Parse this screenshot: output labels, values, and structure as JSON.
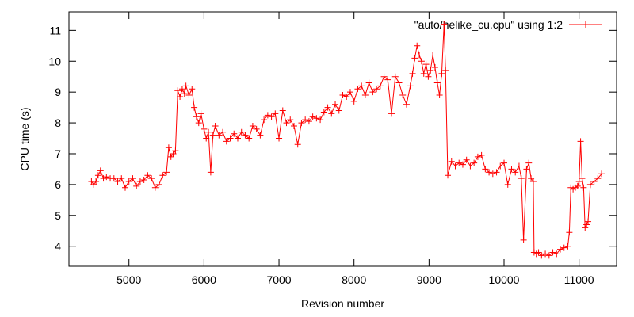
{
  "chart_data": {
    "type": "line",
    "title": "",
    "xlabel": "Revision number",
    "ylabel": "CPU time (s)",
    "xlim": [
      4200,
      11500
    ],
    "ylim": [
      3.35,
      11.6
    ],
    "x_ticks": [
      5000,
      6000,
      7000,
      8000,
      9000,
      10000,
      11000
    ],
    "y_ticks": [
      4,
      5,
      6,
      7,
      8,
      9,
      10,
      11
    ],
    "grid": false,
    "legend_position": "top-right",
    "series": [
      {
        "name": "\"auto/helike_cu.cpu\" using 1:2",
        "color": "#ff0000",
        "marker": "plus",
        "points": [
          [
            4500,
            6.1
          ],
          [
            4530,
            6.0
          ],
          [
            4560,
            6.1
          ],
          [
            4590,
            6.3
          ],
          [
            4620,
            6.45
          ],
          [
            4660,
            6.2
          ],
          [
            4700,
            6.25
          ],
          [
            4750,
            6.2
          ],
          [
            4800,
            6.2
          ],
          [
            4850,
            6.1
          ],
          [
            4900,
            6.2
          ],
          [
            4950,
            5.9
          ],
          [
            5000,
            6.1
          ],
          [
            5050,
            6.2
          ],
          [
            5100,
            5.95
          ],
          [
            5150,
            6.1
          ],
          [
            5200,
            6.15
          ],
          [
            5250,
            6.3
          ],
          [
            5300,
            6.2
          ],
          [
            5350,
            5.9
          ],
          [
            5400,
            6.0
          ],
          [
            5450,
            6.3
          ],
          [
            5500,
            6.4
          ],
          [
            5530,
            7.2
          ],
          [
            5560,
            6.9
          ],
          [
            5590,
            7.0
          ],
          [
            5620,
            7.1
          ],
          [
            5650,
            9.05
          ],
          [
            5680,
            8.85
          ],
          [
            5710,
            9.1
          ],
          [
            5740,
            8.95
          ],
          [
            5760,
            9.2
          ],
          [
            5800,
            8.9
          ],
          [
            5840,
            9.1
          ],
          [
            5870,
            8.5
          ],
          [
            5900,
            8.2
          ],
          [
            5930,
            8.0
          ],
          [
            5960,
            8.3
          ],
          [
            6000,
            7.8
          ],
          [
            6030,
            7.5
          ],
          [
            6060,
            7.7
          ],
          [
            6090,
            6.4
          ],
          [
            6120,
            7.6
          ],
          [
            6150,
            7.9
          ],
          [
            6200,
            7.6
          ],
          [
            6250,
            7.7
          ],
          [
            6300,
            7.4
          ],
          [
            6350,
            7.5
          ],
          [
            6400,
            7.65
          ],
          [
            6450,
            7.5
          ],
          [
            6500,
            7.7
          ],
          [
            6550,
            7.6
          ],
          [
            6600,
            7.5
          ],
          [
            6650,
            7.9
          ],
          [
            6700,
            7.8
          ],
          [
            6750,
            7.6
          ],
          [
            6800,
            8.1
          ],
          [
            6850,
            8.25
          ],
          [
            6900,
            8.2
          ],
          [
            6950,
            8.3
          ],
          [
            7000,
            7.5
          ],
          [
            7050,
            8.4
          ],
          [
            7100,
            8.0
          ],
          [
            7150,
            8.1
          ],
          [
            7200,
            7.9
          ],
          [
            7250,
            7.3
          ],
          [
            7300,
            8.0
          ],
          [
            7350,
            8.1
          ],
          [
            7400,
            8.05
          ],
          [
            7450,
            8.2
          ],
          [
            7500,
            8.15
          ],
          [
            7550,
            8.1
          ],
          [
            7600,
            8.35
          ],
          [
            7650,
            8.5
          ],
          [
            7700,
            8.3
          ],
          [
            7750,
            8.6
          ],
          [
            7800,
            8.4
          ],
          [
            7850,
            8.9
          ],
          [
            7900,
            8.85
          ],
          [
            7950,
            9.0
          ],
          [
            8000,
            8.7
          ],
          [
            8050,
            9.1
          ],
          [
            8100,
            9.2
          ],
          [
            8150,
            8.9
          ],
          [
            8200,
            9.3
          ],
          [
            8250,
            9.0
          ],
          [
            8300,
            9.1
          ],
          [
            8350,
            9.2
          ],
          [
            8400,
            9.5
          ],
          [
            8450,
            9.4
          ],
          [
            8500,
            8.3
          ],
          [
            8550,
            9.5
          ],
          [
            8600,
            9.3
          ],
          [
            8650,
            8.9
          ],
          [
            8700,
            8.6
          ],
          [
            8750,
            9.2
          ],
          [
            8780,
            9.6
          ],
          [
            8810,
            10.1
          ],
          [
            8840,
            10.5
          ],
          [
            8870,
            10.2
          ],
          [
            8900,
            10.0
          ],
          [
            8930,
            9.6
          ],
          [
            8960,
            9.9
          ],
          [
            8990,
            9.5
          ],
          [
            9020,
            9.7
          ],
          [
            9050,
            10.2
          ],
          [
            9080,
            9.8
          ],
          [
            9110,
            9.3
          ],
          [
            9140,
            8.9
          ],
          [
            9170,
            9.6
          ],
          [
            9200,
            11.2
          ],
          [
            9220,
            9.7
          ],
          [
            9250,
            6.3
          ],
          [
            9300,
            6.75
          ],
          [
            9350,
            6.6
          ],
          [
            9400,
            6.7
          ],
          [
            9450,
            6.65
          ],
          [
            9500,
            6.8
          ],
          [
            9550,
            6.6
          ],
          [
            9600,
            6.7
          ],
          [
            9650,
            6.9
          ],
          [
            9700,
            6.95
          ],
          [
            9750,
            6.5
          ],
          [
            9800,
            6.4
          ],
          [
            9850,
            6.35
          ],
          [
            9900,
            6.4
          ],
          [
            9950,
            6.6
          ],
          [
            10000,
            6.7
          ],
          [
            10050,
            6.0
          ],
          [
            10100,
            6.5
          ],
          [
            10150,
            6.4
          ],
          [
            10200,
            6.6
          ],
          [
            10230,
            6.2
          ],
          [
            10260,
            4.2
          ],
          [
            10300,
            6.5
          ],
          [
            10330,
            6.7
          ],
          [
            10360,
            6.2
          ],
          [
            10390,
            6.1
          ],
          [
            10400,
            3.8
          ],
          [
            10430,
            3.75
          ],
          [
            10460,
            3.8
          ],
          [
            10500,
            3.7
          ],
          [
            10550,
            3.75
          ],
          [
            10600,
            3.7
          ],
          [
            10650,
            3.8
          ],
          [
            10700,
            3.75
          ],
          [
            10750,
            3.9
          ],
          [
            10800,
            3.95
          ],
          [
            10850,
            4.0
          ],
          [
            10870,
            4.45
          ],
          [
            10890,
            5.9
          ],
          [
            10920,
            5.85
          ],
          [
            10950,
            5.9
          ],
          [
            10980,
            5.95
          ],
          [
            11000,
            6.1
          ],
          [
            11020,
            7.4
          ],
          [
            11040,
            6.2
          ],
          [
            11060,
            5.9
          ],
          [
            11080,
            4.6
          ],
          [
            11100,
            4.7
          ],
          [
            11120,
            4.8
          ],
          [
            11150,
            6.0
          ],
          [
            11200,
            6.1
          ],
          [
            11250,
            6.2
          ],
          [
            11300,
            6.35
          ]
        ]
      }
    ]
  }
}
